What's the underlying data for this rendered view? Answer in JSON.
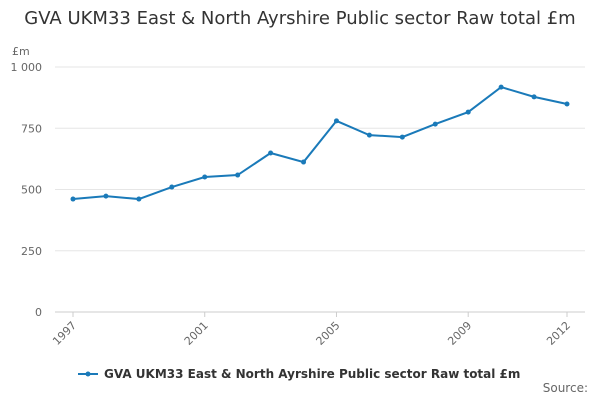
{
  "chart_data": {
    "type": "line",
    "title": "GVA UKM33 East & North Ayrshire Public sector Raw total £m",
    "y_label": "£m",
    "source": "Source:",
    "x": [
      1997,
      1998,
      1999,
      2000,
      2001,
      2002,
      2003,
      2004,
      2005,
      2006,
      2007,
      2008,
      2009,
      2010,
      2011,
      2012
    ],
    "series": [
      {
        "name": "GVA UKM33 East & North Ayrshire Public sector Raw total £m",
        "color": "#1a7ab9",
        "values": [
          461,
          473,
          461,
          510,
          551,
          559,
          649,
          612,
          780,
          722,
          714,
          767,
          816,
          918,
          878,
          849
        ]
      }
    ],
    "xlim": [
      1997,
      2012
    ],
    "xticks": [
      1997,
      2001,
      2005,
      2009,
      2012
    ],
    "ylim": [
      0,
      1000
    ],
    "yticks": [
      0,
      250,
      500,
      750,
      {
        "value": 1000,
        "label": "1 000"
      }
    ],
    "grid": true
  }
}
